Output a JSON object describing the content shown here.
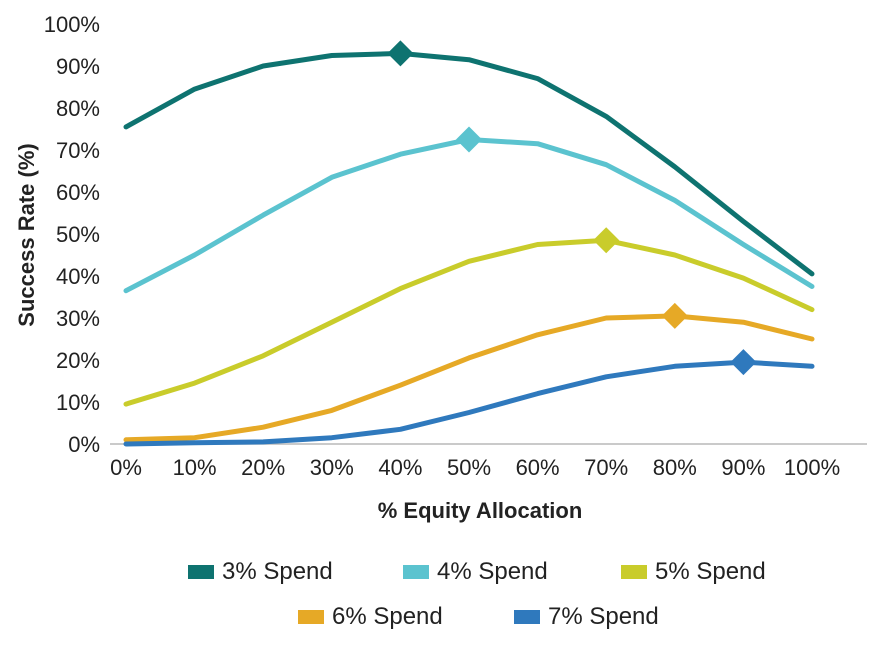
{
  "chart_data": {
    "type": "line",
    "xlabel": "% Equity Allocation",
    "ylabel": "Success Rate (%)",
    "ylim": [
      0,
      100
    ],
    "categories": [
      "0%",
      "10%",
      "20%",
      "30%",
      "40%",
      "50%",
      "60%",
      "70%",
      "80%",
      "90%",
      "100%"
    ],
    "y_ticks": [
      "0%",
      "10%",
      "20%",
      "30%",
      "40%",
      "50%",
      "60%",
      "70%",
      "80%",
      "90%",
      "100%"
    ],
    "grid": false,
    "legend_position": "bottom",
    "series": [
      {
        "name": "3% Spend",
        "color": "#0e7370",
        "values": [
          75.5,
          84.5,
          90,
          92.5,
          93,
          91.5,
          87,
          78,
          66,
          53,
          40.5
        ],
        "peak_index": 4
      },
      {
        "name": "4% Spend",
        "color": "#5bc3cf",
        "values": [
          36.5,
          45,
          54.5,
          63.5,
          69,
          72.5,
          71.5,
          66.5,
          58,
          47.5,
          37.5
        ],
        "peak_index": 5
      },
      {
        "name": "5% Spend",
        "color": "#c9cc2b",
        "values": [
          9.5,
          14.5,
          21,
          29,
          37,
          43.5,
          47.5,
          48.5,
          45,
          39.5,
          32
        ],
        "peak_index": 7
      },
      {
        "name": "6% Spend",
        "color": "#e6a926",
        "values": [
          1,
          1.5,
          4,
          8,
          14,
          20.5,
          26,
          30,
          30.5,
          29,
          25
        ],
        "peak_index": 8
      },
      {
        "name": "7% Spend",
        "color": "#2f79bd",
        "values": [
          0,
          0.3,
          0.5,
          1.5,
          3.5,
          7.5,
          12,
          16,
          18.5,
          19.5,
          18.5
        ],
        "peak_index": 9
      }
    ]
  }
}
